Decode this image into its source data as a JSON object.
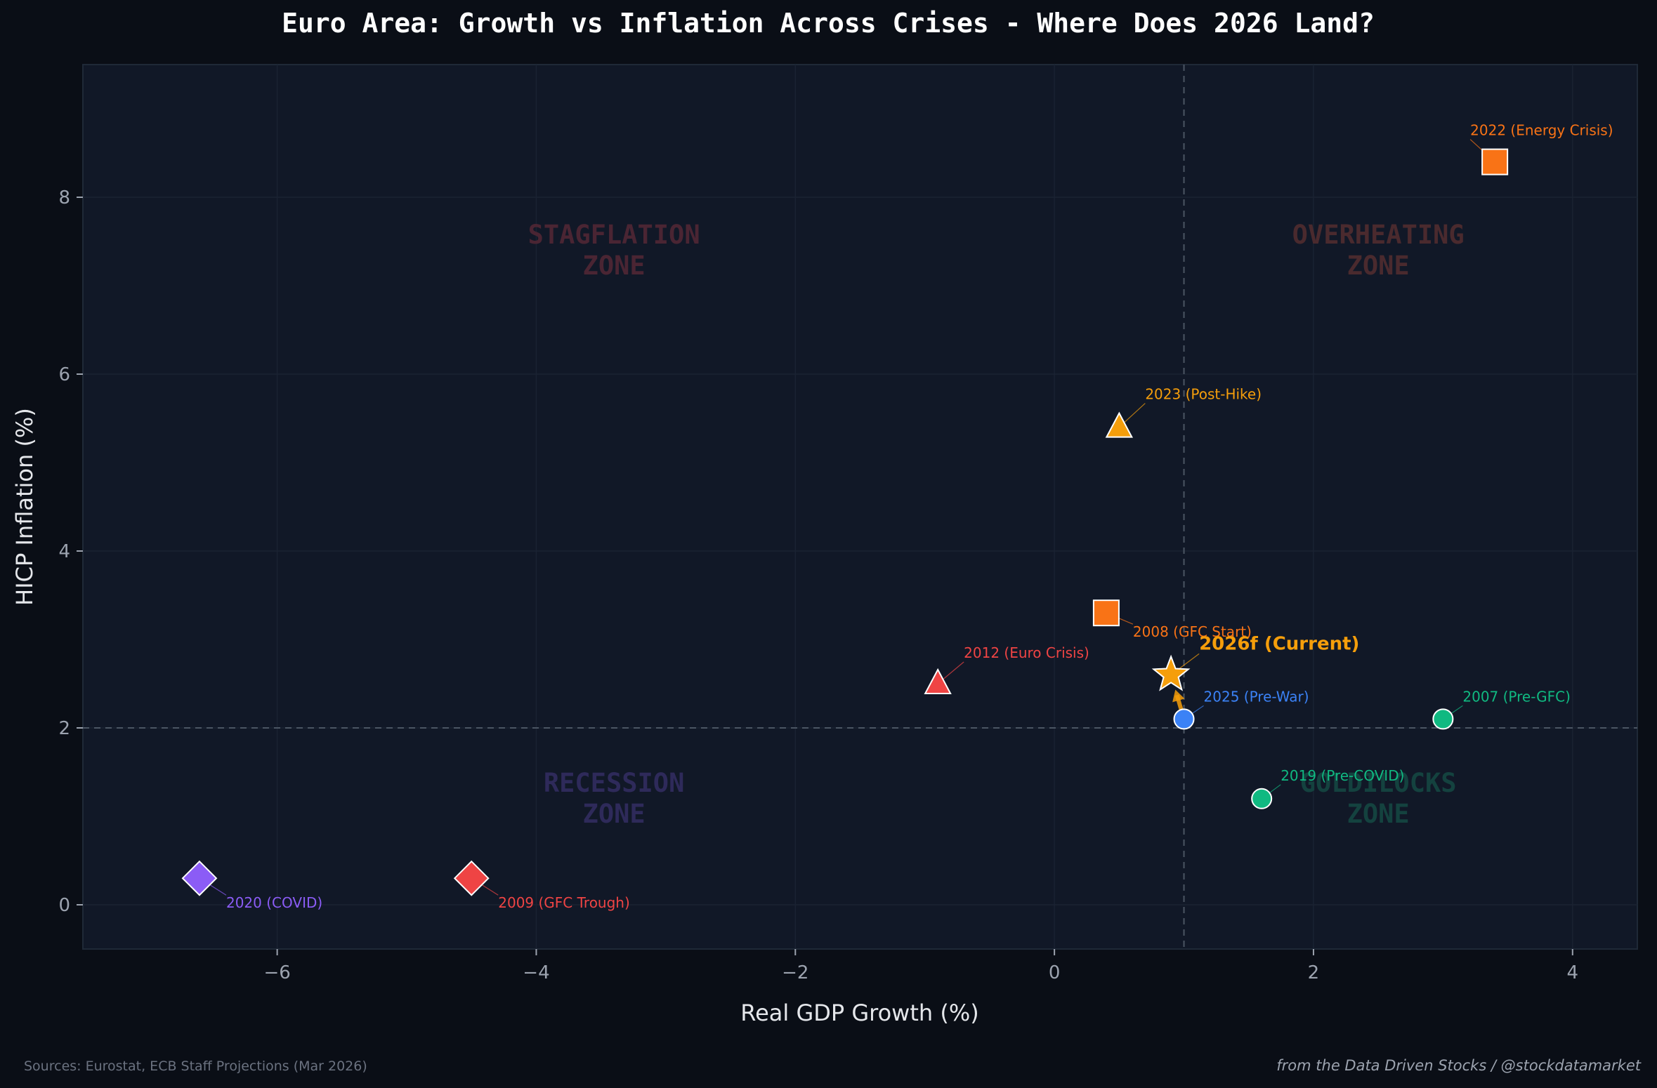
{
  "chart_data": {
    "type": "scatter",
    "title": "Euro Area: Growth vs Inflation Across Crises - Where Does 2026 Land?",
    "xlabel": "Real GDP Growth (%)",
    "ylabel": "HICP Inflation (%)",
    "xlim": [
      -7.5,
      4.5
    ],
    "ylim": [
      -0.5,
      9.5
    ],
    "xticks": [
      -6,
      -4,
      -2,
      0,
      2,
      4
    ],
    "xtick_labels": [
      "−6",
      "−4",
      "−2",
      "0",
      "2",
      "4"
    ],
    "yticks": [
      0,
      2,
      4,
      6,
      8
    ],
    "ytick_labels": [
      "0",
      "2",
      "4",
      "6",
      "8"
    ],
    "grid": true,
    "reference_lines": {
      "x": 1.0,
      "y": 2.0
    },
    "zones": [
      {
        "label": "STAGFLATION\nZONE",
        "color": "#4a2533"
      },
      {
        "label": "OVERHEATING\nZONE",
        "color": "#4a2a2e"
      },
      {
        "label": "RECESSION\nZONE",
        "color": "#2e2a5a"
      },
      {
        "label": "GOLDILOCKS\nZONE",
        "color": "#14423f"
      }
    ],
    "points": [
      {
        "label": "2022 (Energy Crisis)",
        "x": 3.4,
        "y": 8.4,
        "marker": "square",
        "color": "#f97316"
      },
      {
        "label": "2023 (Post-Hike)",
        "x": 0.5,
        "y": 5.4,
        "marker": "triangle",
        "color": "#f59e0b"
      },
      {
        "label": "2008 (GFC Start)",
        "x": 0.4,
        "y": 3.3,
        "marker": "square",
        "color": "#f97316"
      },
      {
        "label": "2012 (Euro Crisis)",
        "x": -0.9,
        "y": 2.5,
        "marker": "triangle",
        "color": "#ef4444"
      },
      {
        "label": "2026f (Current)",
        "x": 0.9,
        "y": 2.6,
        "marker": "star",
        "color": "#f59e0b"
      },
      {
        "label": "2025 (Pre-War)",
        "x": 1.0,
        "y": 2.1,
        "marker": "circle",
        "color": "#3b82f6"
      },
      {
        "label": "2007 (Pre-GFC)",
        "x": 3.0,
        "y": 2.1,
        "marker": "circle",
        "color": "#10b981"
      },
      {
        "label": "2019 (Pre-COVID)",
        "x": 1.6,
        "y": 1.2,
        "marker": "circle",
        "color": "#10b981"
      },
      {
        "label": "2020 (COVID)",
        "x": -6.6,
        "y": 0.3,
        "marker": "diamond",
        "color": "#8b5cf6"
      },
      {
        "label": "2009 (GFC Trough)",
        "x": -4.5,
        "y": 0.3,
        "marker": "diamond",
        "color": "#ef4444"
      }
    ],
    "arrow": {
      "from": "2025 (Pre-War)",
      "to": "2026f (Current)",
      "color": "#f59e0b"
    }
  },
  "footer": {
    "sources": "Sources: Eurostat, ECB Staff Projections (Mar 2026)",
    "credit": "from the Data Driven Stocks / @stockdatamarket"
  }
}
